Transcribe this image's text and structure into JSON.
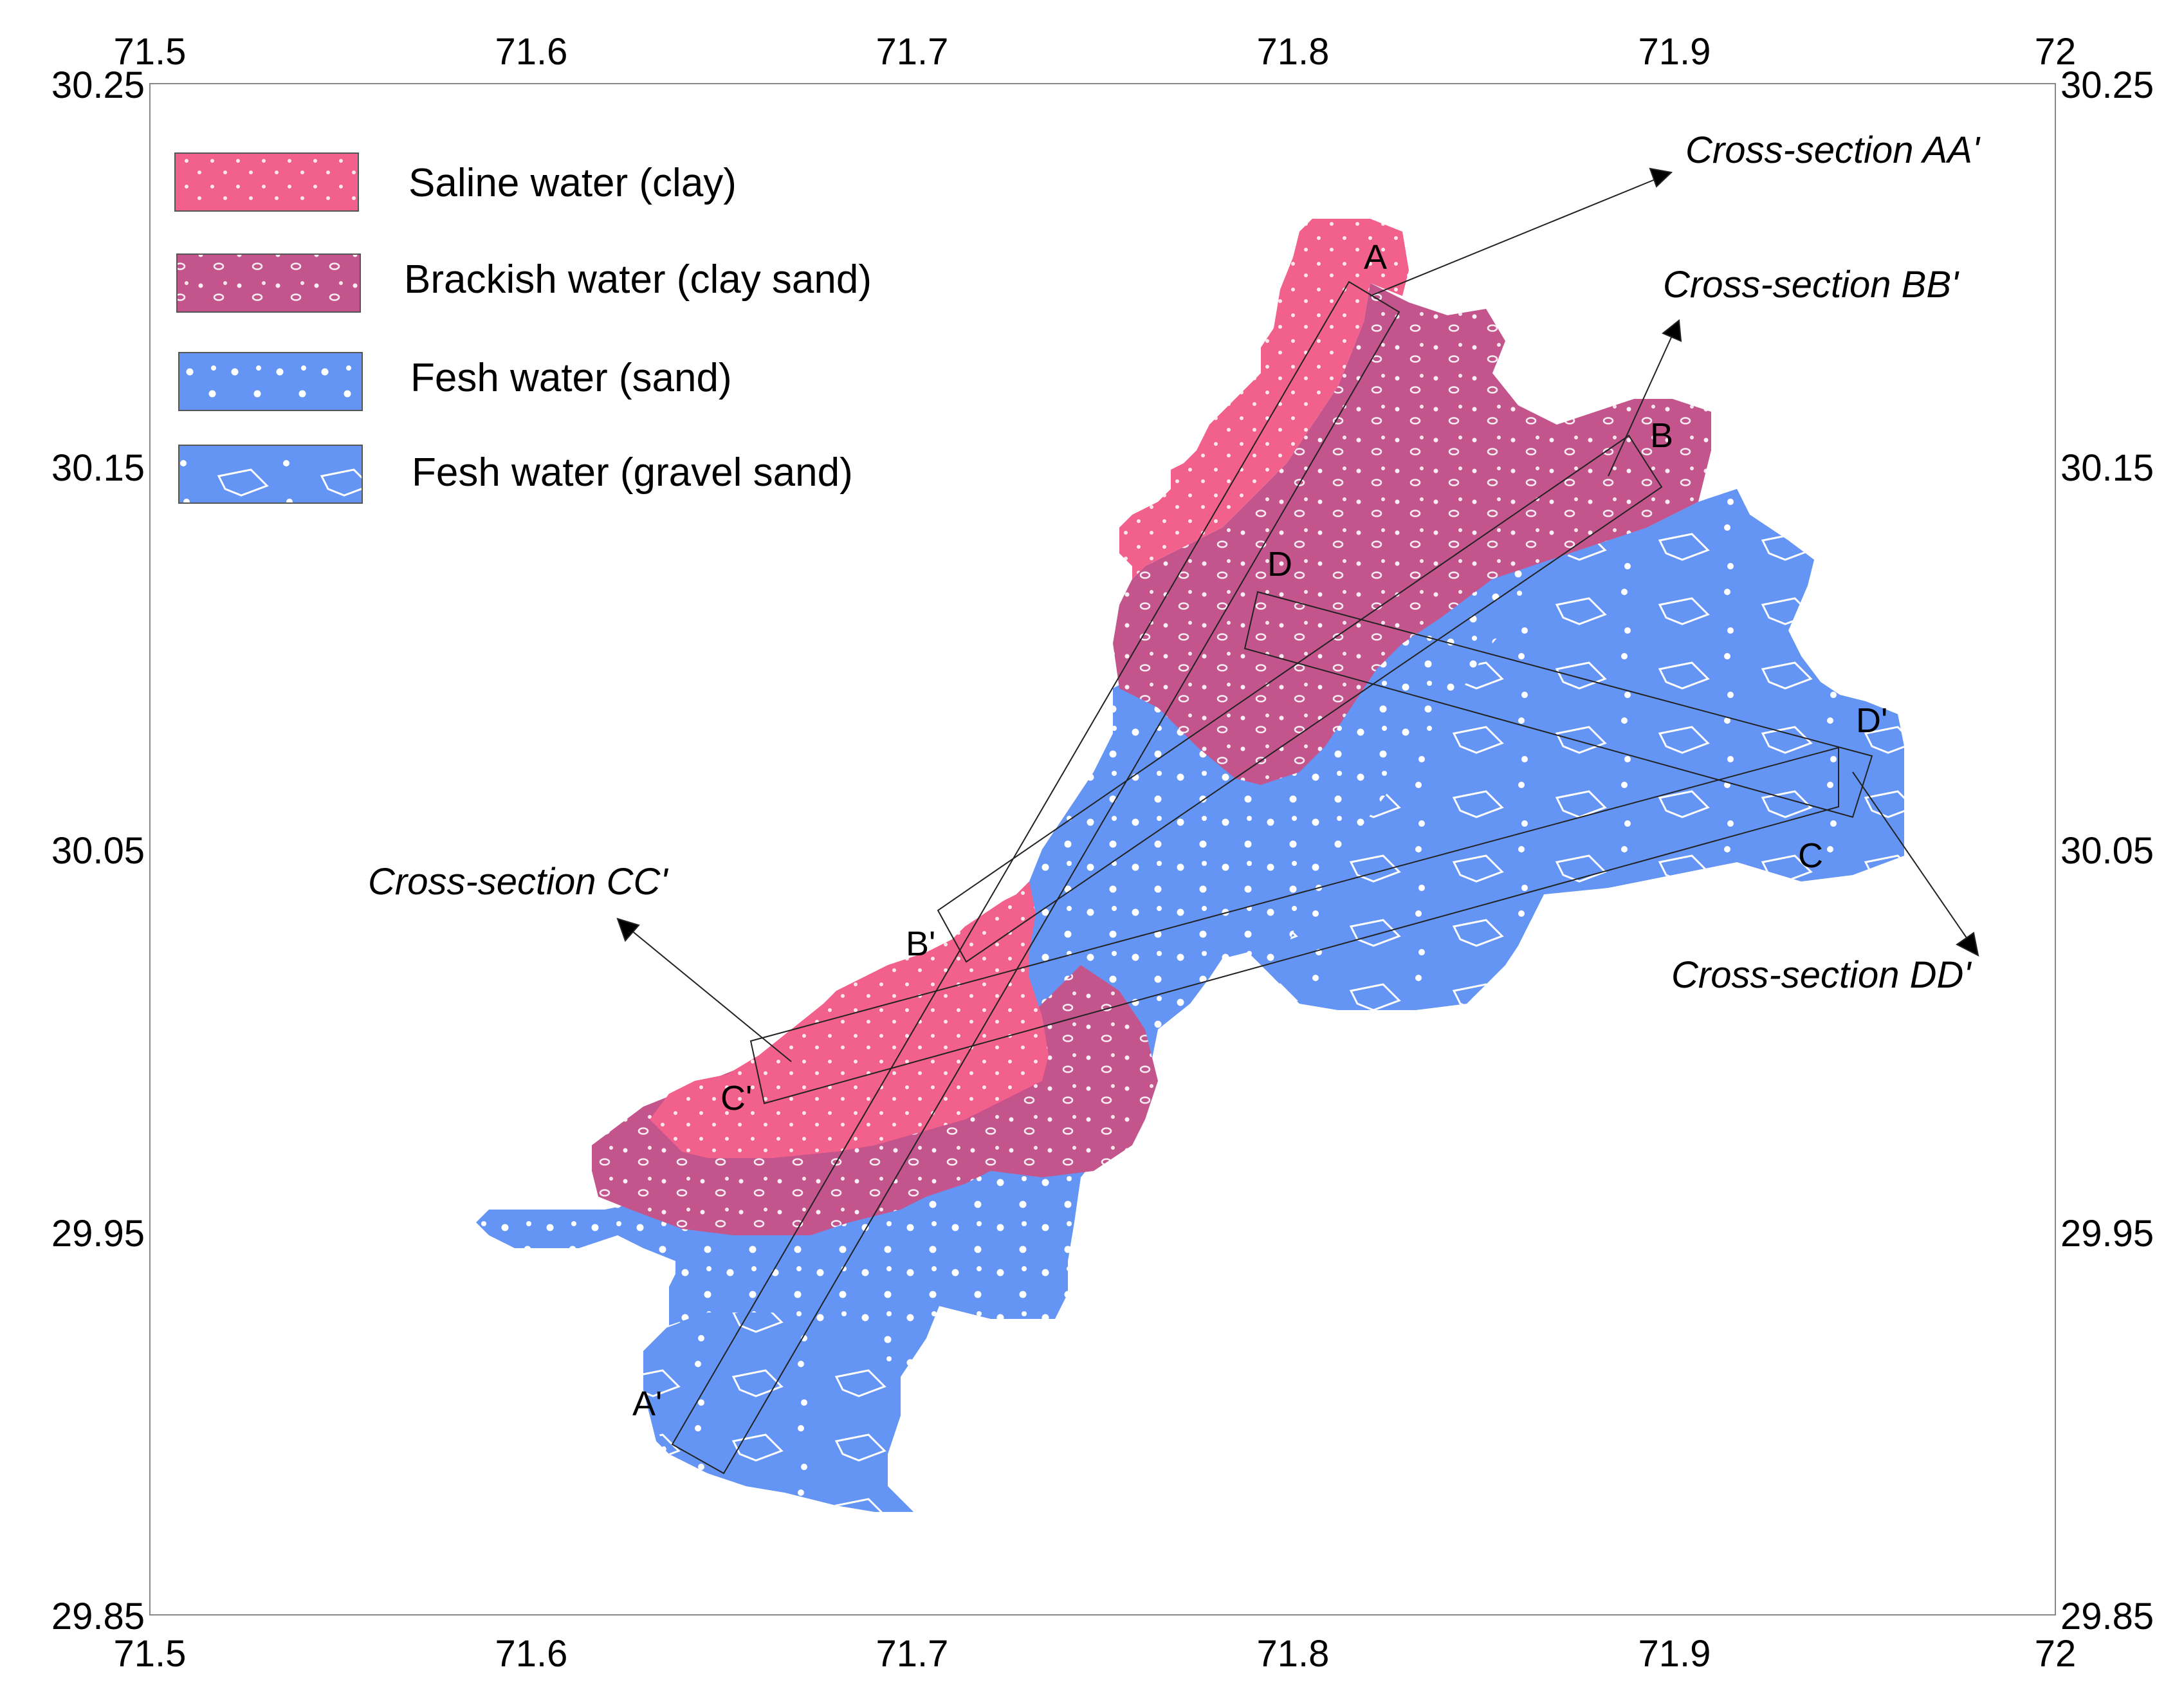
{
  "map": {
    "axes": {
      "x_ticks": [
        "71.5",
        "71.6",
        "71.7",
        "71.8",
        "71.9",
        "72"
      ],
      "y_ticks": [
        "30.25",
        "30.15",
        "30.05",
        "29.95",
        "29.85"
      ]
    },
    "legend": [
      {
        "label": "Saline water (clay)",
        "color": "#F2608C"
      },
      {
        "label": "Brackish water (clay sand)",
        "color": "#C4558C"
      },
      {
        "label": "Fesh water (sand)",
        "color": "#6495F5"
      },
      {
        "label": "Fesh water (gravel sand)",
        "color": "#6495F5"
      }
    ],
    "cross_sections": {
      "aa": "Cross-section AA'",
      "bb": "Cross-section BB'",
      "cc": "Cross-section CC'",
      "dd": "Cross-section DD'"
    },
    "points": {
      "a": "A",
      "a_prime": "A'",
      "b": "B",
      "b_prime": "B'",
      "c": "C",
      "c_prime": "C'",
      "d": "D",
      "d_prime": "D'"
    }
  }
}
